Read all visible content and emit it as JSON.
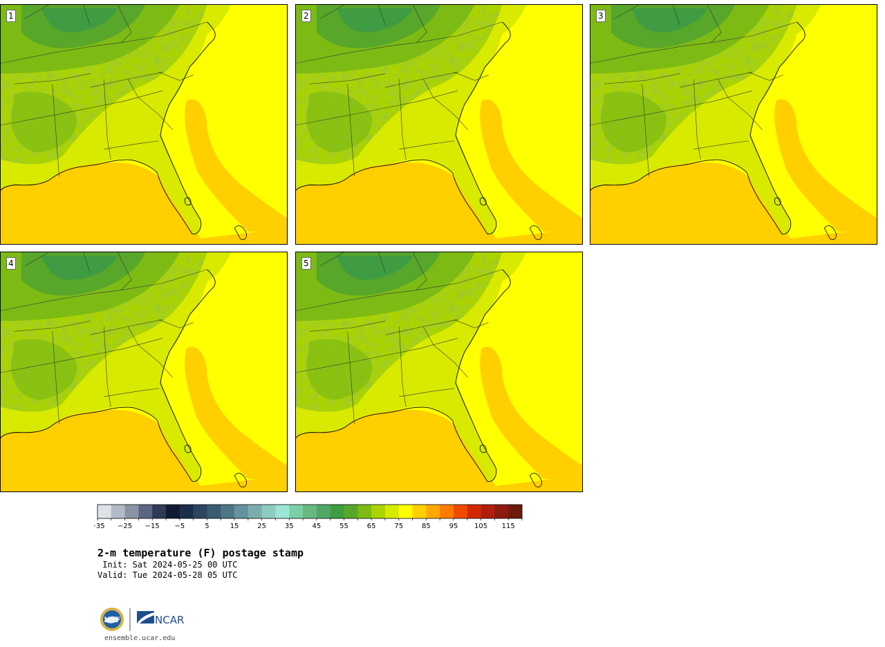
{
  "panels": [
    {
      "label": "1"
    },
    {
      "label": "2"
    },
    {
      "label": "3"
    },
    {
      "label": "4"
    },
    {
      "label": "5"
    }
  ],
  "colorbar": {
    "ticks": [
      "−35",
      "−25",
      "−15",
      "−5",
      "5",
      "15",
      "25",
      "35",
      "45",
      "55",
      "65",
      "75",
      "85",
      "95",
      "105",
      "115"
    ],
    "colors": [
      "#dde2e8",
      "#b3b9c6",
      "#8a93a6",
      "#5b6680",
      "#2e3a57",
      "#101b33",
      "#1b2d4a",
      "#2b4560",
      "#3b5b72",
      "#4f7587",
      "#65929e",
      "#7aaead",
      "#8ecbc0",
      "#9be6d5",
      "#7dcfa6",
      "#66b982",
      "#52a766",
      "#3f9c42",
      "#58a62a",
      "#7dbb14",
      "#aad300",
      "#d7ea00",
      "#ffff00",
      "#ffcf00",
      "#ffa800",
      "#ff7b00",
      "#f24b00",
      "#d12800",
      "#b01f0d",
      "#8d1a0f",
      "#6e1a0f"
    ]
  },
  "title": {
    "main": "2-m temperature (F) postage stamp",
    "init": " Init: Sat 2024-05-25 00 UTC",
    "valid": "Valid: Tue 2024-05-28 05 UTC"
  },
  "logos": {
    "left": "nsf-logo",
    "right_text": "NCAR"
  },
  "site": "ensemble.ucar.edu"
}
